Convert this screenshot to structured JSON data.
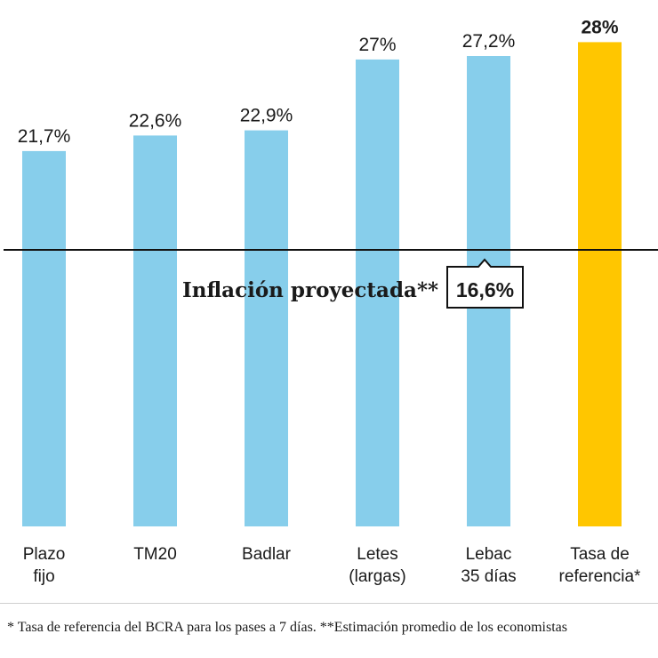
{
  "chart_data": {
    "type": "bar",
    "categories": [
      [
        "Plazo",
        "fijo"
      ],
      [
        "TM20"
      ],
      [
        "Badlar"
      ],
      [
        "Letes",
        "(largas)"
      ],
      [
        "Lebac",
        "35 días"
      ],
      [
        "Tasa de",
        "referencia*"
      ]
    ],
    "values": [
      21.7,
      22.6,
      22.9,
      27,
      27.2,
      28
    ],
    "value_labels": [
      "21,7%",
      "22,6%",
      "22,9%",
      "27%",
      "27,2%",
      "28%"
    ],
    "highlight_index": 5,
    "ylim": [
      0,
      30
    ],
    "grid": false,
    "reference_line": {
      "label": "Inflación proyectada**",
      "value": 16.6,
      "value_label": "16,6%"
    }
  },
  "colors": {
    "bar": "#87ceeb",
    "highlight": "#ffc600",
    "line": "#111111"
  },
  "footnote": "* Tasa de referencia del BCRA para los pases a 7 días. **Estimación promedio de los economistas"
}
